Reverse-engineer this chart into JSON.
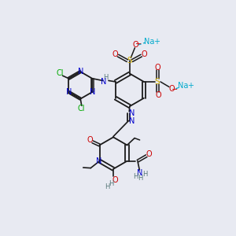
{
  "background_color": "#e8eaf2",
  "bond_color": "#1a1a1a",
  "colors": {
    "N": "#0000cc",
    "O": "#cc0000",
    "Cl": "#00aa00",
    "S": "#ccaa00",
    "Na": "#00aacc",
    "H": "#557777",
    "C": "#1a1a1a",
    "plus": "#0000cc"
  },
  "fig_size": [
    3.0,
    3.0
  ],
  "dpi": 100
}
